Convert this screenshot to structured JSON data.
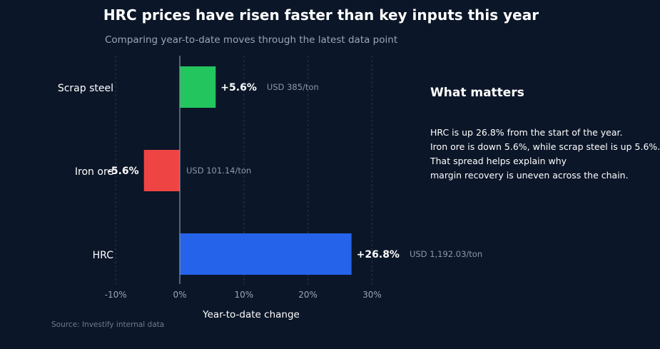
{
  "title": "HRC prices have risen faster than key inputs this year",
  "subtitle": "Comparing year-to-date moves through the latest data point",
  "panel": {
    "heading": "What matters",
    "lines": [
      "HRC is up 26.8% from the start of the year.",
      "Iron ore is down 5.6%, while scrap steel is up 5.6%.",
      "That spread helps explain why",
      "margin recovery is uneven across the chain."
    ]
  },
  "source": "Source: Investify internal data",
  "chart_data": {
    "type": "bar",
    "orientation": "horizontal",
    "categories": [
      "Scrap steel",
      "Iron ore",
      "HRC"
    ],
    "values": [
      5.6,
      -5.6,
      26.8
    ],
    "value_labels": [
      "+5.6%",
      "-5.6%",
      "+26.8%"
    ],
    "price_labels": [
      "USD 385/ton",
      "USD 101.14/ton",
      "USD 1,192.03/ton"
    ],
    "bar_colors": [
      "#22c55e",
      "#ef4444",
      "#2563eb"
    ],
    "xlabel": "Year-to-date change",
    "xlim": [
      -10,
      30
    ],
    "xticks": [
      -10,
      0,
      10,
      20,
      30
    ],
    "xtick_labels": [
      "-10%",
      "0%",
      "10%",
      "20%",
      "30%"
    ],
    "grid": "vertical dashed",
    "zero_line_color": "#8a96a8"
  }
}
